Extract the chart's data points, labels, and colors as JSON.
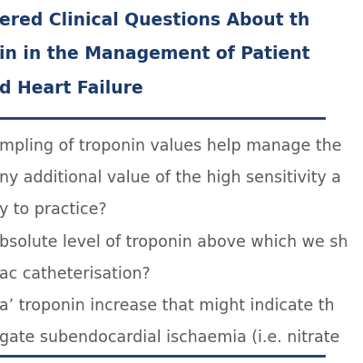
{
  "bg_color": "#ffffff",
  "title_color": "#1a3a6b",
  "title_lines": [
    "ered Clinical Questions About th",
    "in in the Management of Patient",
    "d Heart Failure"
  ],
  "title_fontsize": 13.5,
  "divider_color": "#1a3a6b",
  "body_color": "#5a5a5a",
  "body_fontsize": 12.5,
  "body_lines": [
    "mpling of troponin values help manage the",
    "ny additional value of the high sensitivity a",
    "y to practice?",
    "bsolute level of troponin above which we sh",
    "ac catheterisation?",
    "a’ troponin increase that might indicate th",
    "gate subendocardial ischaemia (i.e. nitrate"
  ],
  "bottom_line_color": "#1a3a6b",
  "panel_bg": "#ffffff"
}
